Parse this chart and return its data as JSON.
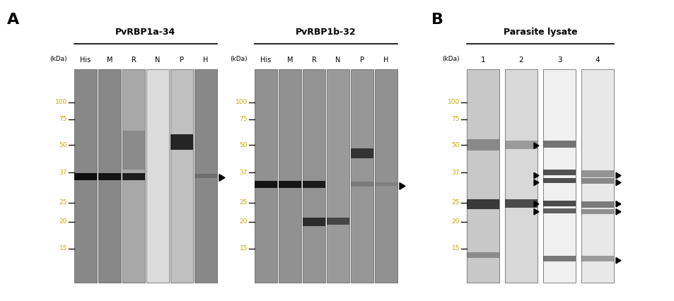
{
  "fig_width": 9.54,
  "fig_height": 4.26,
  "bg_color": "#ffffff",
  "panel_A_label": "A",
  "panel_B_label": "B",
  "panel_A1_title": "PvRBP1a-34",
  "panel_A2_title": "PvRBP1b-32",
  "panel_B_title": "Parasite lysate",
  "A1_lanes": [
    "His",
    "M",
    "R",
    "N",
    "P",
    "H"
  ],
  "A2_lanes": [
    "His",
    "M",
    "R",
    "N",
    "P",
    "H"
  ],
  "B_lanes": [
    "1",
    "2",
    "3",
    "4"
  ],
  "kda_labels": [
    "100",
    "75",
    "50",
    "37",
    "25",
    "20",
    "15"
  ],
  "kda_fracs": {
    "100": 0.845,
    "75": 0.765,
    "50": 0.645,
    "37": 0.515,
    "25": 0.375,
    "20": 0.285,
    "15": 0.16
  },
  "A1_lane_colors": [
    "#888888",
    "#888888",
    "#b0b0b0",
    "#e8e8e8",
    "#b8b8b8",
    "#888888"
  ],
  "A2_lane_colors": [
    "#909090",
    "#909090",
    "#989898",
    "#a8a8a8",
    "#a0a0a0",
    "#909090"
  ],
  "B_lane_colors": [
    "#c0c0c0",
    "#d0d0d0",
    "#ffffff",
    "#e8e8e8"
  ],
  "kda_color": "#c8a800",
  "text_color": "#000000",
  "lane_edge_color": "#555555"
}
